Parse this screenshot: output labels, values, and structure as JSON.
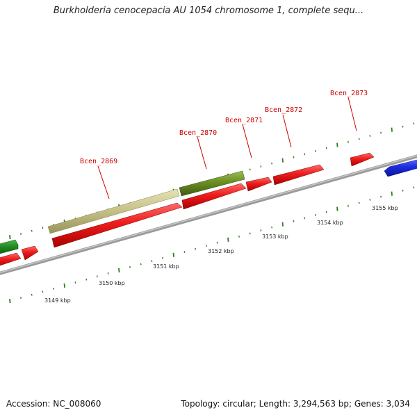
{
  "title": "Burkholderia cenocepacia AU 1054 chromosome 1, complete sequ...",
  "footer": {
    "accession": "Accession: NC_008060",
    "summary": "Topology: circular; Length: 3,294,563 bp; Genes: 3,034"
  },
  "colors": {
    "backbone": "#8a8a8a",
    "forward_gene": "#ee1c1c",
    "reverse_gene": "#1f2ee8",
    "selected_gene": "#6b8e23",
    "faded_gene": "#c8c48a",
    "tick": "#2e7d1e",
    "gene_label": "#cc0000",
    "scale_label": "#222222"
  },
  "scale_labels": [
    "3149 kbp",
    "3150 kbp",
    "3151 kbp",
    "3152 kbp",
    "3153 kbp",
    "3154 kbp",
    "3155 kbp"
  ],
  "gene_labels": [
    "Bcen_2869",
    "Bcen_2870",
    "Bcen_2871",
    "Bcen_2872",
    "Bcen_2873"
  ]
}
